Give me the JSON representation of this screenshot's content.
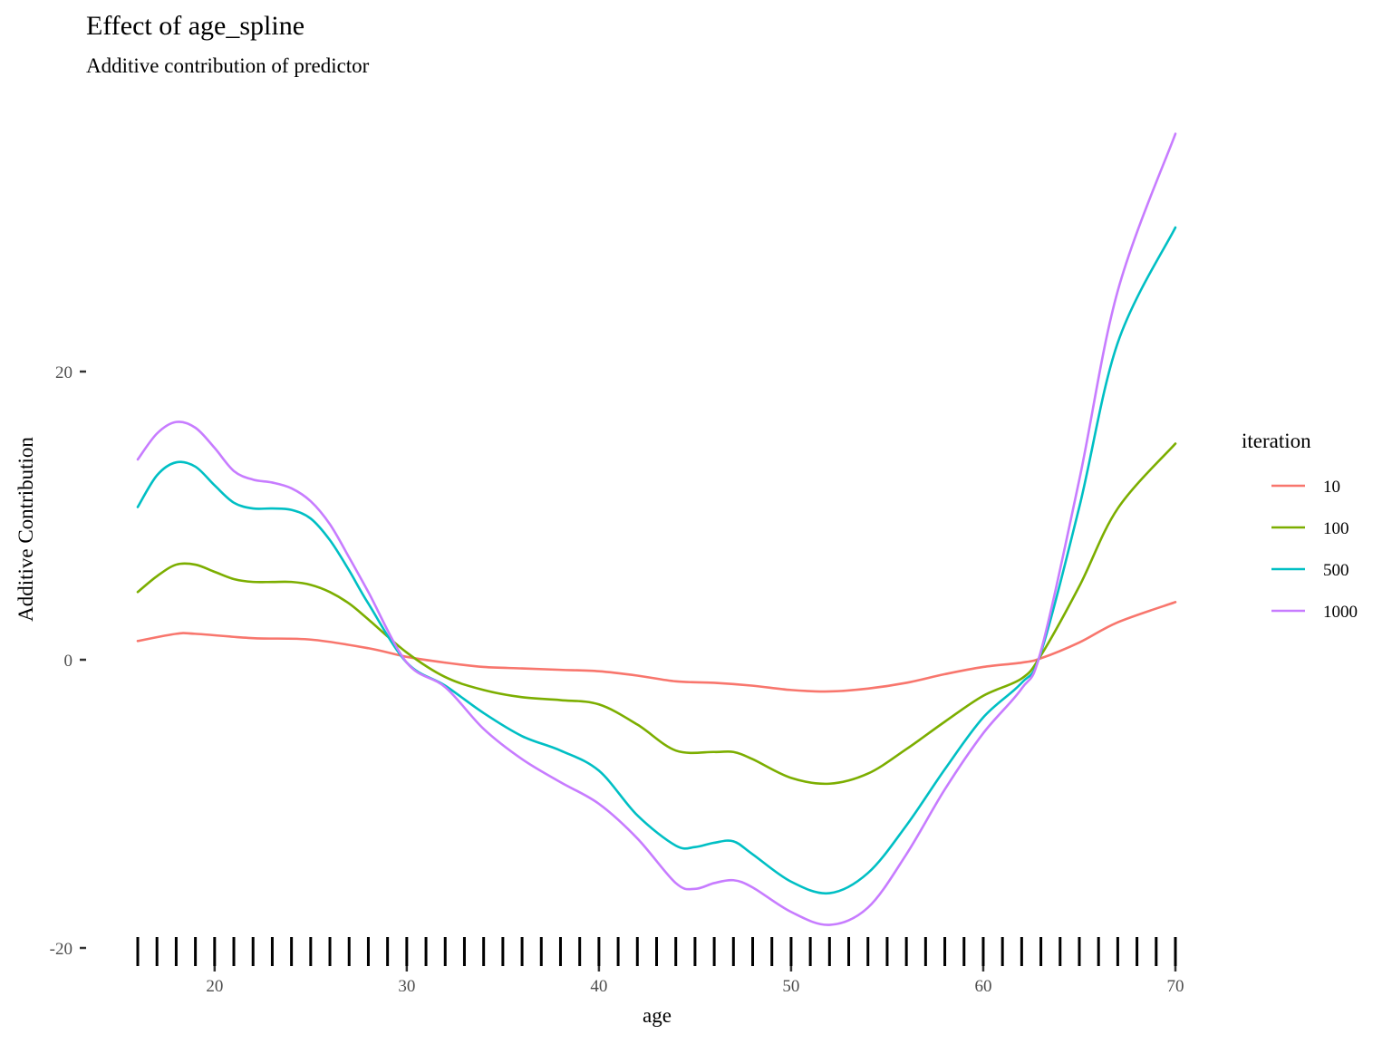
{
  "chart_data": {
    "type": "line",
    "title": "Effect of age_spline",
    "subtitle": "Additive contribution of predictor",
    "xlabel": "age",
    "ylabel": "Additive Contribution",
    "xlim": [
      16,
      70
    ],
    "ylim": [
      -20,
      37
    ],
    "x_ticks": [
      20,
      30,
      40,
      50,
      60,
      70
    ],
    "y_ticks": [
      -20,
      0,
      20
    ],
    "grid": false,
    "legend": {
      "title": "iteration",
      "position": "right"
    },
    "rug": [
      16,
      17,
      18,
      19,
      20,
      21,
      22,
      23,
      24,
      25,
      26,
      27,
      28,
      29,
      30,
      31,
      32,
      33,
      34,
      35,
      36,
      37,
      38,
      39,
      40,
      41,
      42,
      43,
      44,
      45,
      46,
      47,
      48,
      49,
      50,
      51,
      52,
      53,
      54,
      55,
      56,
      57,
      58,
      59,
      60,
      61,
      62,
      63,
      64,
      65,
      66,
      67,
      68,
      69,
      70
    ],
    "series": [
      {
        "name": "10",
        "color": "#F8766D",
        "x": [
          16,
          18,
          19,
          22,
          25,
          28,
          30,
          32,
          34,
          36,
          38,
          40,
          42,
          44,
          46,
          48,
          50,
          52,
          54,
          56,
          58,
          60,
          62,
          63,
          65,
          67,
          70
        ],
        "y": [
          1.3,
          1.8,
          1.8,
          1.5,
          1.4,
          0.8,
          0.2,
          -0.2,
          -0.5,
          -0.6,
          -0.7,
          -0.8,
          -1.1,
          -1.5,
          -1.6,
          -1.8,
          -2.1,
          -2.2,
          -2.0,
          -1.6,
          -1.0,
          -0.5,
          -0.2,
          0.1,
          1.2,
          2.6,
          4.0
        ]
      },
      {
        "name": "100",
        "color": "#7CAE00",
        "x": [
          16,
          17,
          18,
          19,
          20,
          21,
          22,
          23,
          24,
          25,
          26,
          27,
          28,
          30,
          32,
          34,
          36,
          38,
          40,
          42,
          44,
          46,
          47,
          48,
          50,
          52,
          54,
          56,
          58,
          60,
          62,
          63,
          65,
          67,
          70
        ],
        "y": [
          4.7,
          5.8,
          6.6,
          6.6,
          6.1,
          5.6,
          5.4,
          5.4,
          5.4,
          5.2,
          4.7,
          3.9,
          2.8,
          0.5,
          -1.2,
          -2.1,
          -2.6,
          -2.8,
          -3.1,
          -4.5,
          -6.3,
          -6.4,
          -6.4,
          -6.9,
          -8.2,
          -8.6,
          -7.9,
          -6.2,
          -4.3,
          -2.5,
          -1.3,
          0.3,
          5.1,
          10.5,
          15.0
        ]
      },
      {
        "name": "500",
        "color": "#00BFC4",
        "x": [
          16,
          17,
          18,
          19,
          20,
          21,
          22,
          23,
          24,
          25,
          26,
          27,
          28,
          30,
          32,
          34,
          36,
          38,
          40,
          42,
          44,
          45,
          46,
          47,
          48,
          50,
          52,
          54,
          56,
          58,
          60,
          62,
          63,
          65,
          67,
          70
        ],
        "y": [
          10.6,
          12.8,
          13.7,
          13.4,
          12.1,
          10.9,
          10.5,
          10.5,
          10.4,
          9.8,
          8.3,
          6.2,
          3.9,
          -0.2,
          -1.8,
          -3.7,
          -5.3,
          -6.3,
          -7.7,
          -10.8,
          -12.9,
          -13.0,
          -12.7,
          -12.6,
          -13.5,
          -15.4,
          -16.2,
          -14.8,
          -11.5,
          -7.6,
          -4.0,
          -1.6,
          0.5,
          10.6,
          22.0,
          30.0
        ]
      },
      {
        "name": "1000",
        "color": "#C77CFF",
        "x": [
          16,
          17,
          18,
          19,
          20,
          21,
          22,
          23,
          24,
          25,
          26,
          27,
          28,
          30,
          32,
          34,
          36,
          38,
          40,
          42,
          44,
          45,
          46,
          47,
          48,
          50,
          52,
          54,
          56,
          58,
          60,
          62,
          63,
          65,
          67,
          70
        ],
        "y": [
          13.9,
          15.7,
          16.5,
          16.1,
          14.7,
          13.1,
          12.5,
          12.3,
          11.9,
          11.0,
          9.4,
          7.1,
          4.7,
          -0.2,
          -1.9,
          -4.8,
          -6.9,
          -8.5,
          -10.0,
          -12.4,
          -15.5,
          -15.9,
          -15.5,
          -15.3,
          -15.8,
          -17.5,
          -18.4,
          -17.2,
          -13.5,
          -9.0,
          -5.1,
          -2.0,
          0.6,
          12.5,
          25.6,
          36.5
        ]
      }
    ]
  }
}
